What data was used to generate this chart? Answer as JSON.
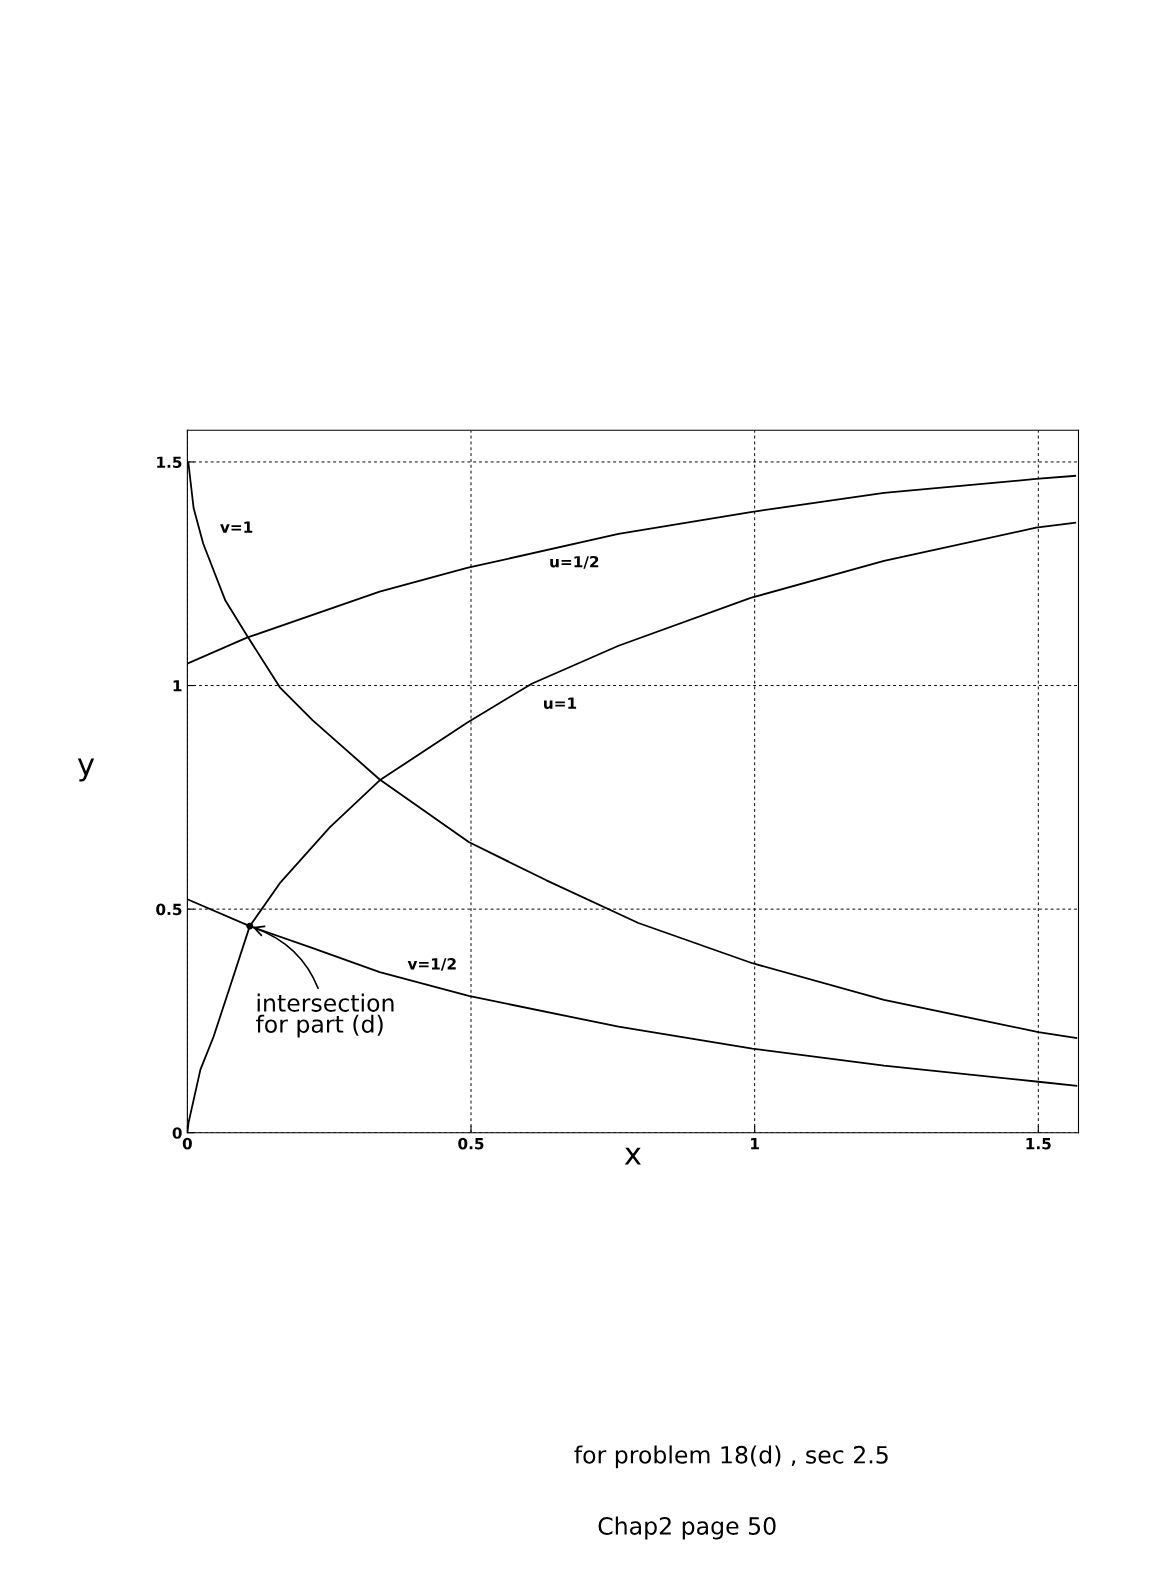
{
  "chart_data": {
    "type": "line",
    "xlabel": "x",
    "ylabel": "y",
    "xlim": [
      0,
      1.5708
    ],
    "ylim": [
      0,
      1.5708
    ],
    "xticks": [
      0,
      0.5,
      1,
      1.5
    ],
    "yticks": [
      0,
      0.5,
      1,
      1.5
    ],
    "grid": true,
    "legend": false,
    "marker": "none",
    "line_style": "solid",
    "series": [
      {
        "name": "v=1",
        "color": "#000000",
        "x": [
          0,
          0.002,
          0.011,
          0.028,
          0.067,
          0.105,
          0.163,
          0.221,
          0.339,
          0.496,
          0.632,
          0.795,
          0.996,
          1.228,
          1.5,
          1.567
        ],
        "values": [
          1.5,
          1.496,
          1.397,
          1.317,
          1.19,
          1.112,
          0.996,
          0.922,
          0.79,
          0.65,
          0.565,
          0.469,
          0.379,
          0.297,
          0.225,
          0.212
        ]
      },
      {
        "name": "u=1/2",
        "color": "#000000",
        "x": [
          0,
          0.105,
          0.339,
          0.493,
          0.76,
          0.993,
          1.228,
          1.496,
          1.565
        ],
        "values": [
          1.049,
          1.107,
          1.21,
          1.263,
          1.339,
          1.388,
          1.431,
          1.462,
          1.469
        ]
      },
      {
        "name": "u=1",
        "color": "#000000",
        "x": [
          0,
          0.002,
          0.023,
          0.046,
          0.075,
          0.11,
          0.163,
          0.251,
          0.339,
          0.493,
          0.607,
          0.76,
          0.993,
          1.228,
          1.496,
          1.565
        ],
        "values": [
          0,
          0.022,
          0.141,
          0.214,
          0.326,
          0.462,
          0.558,
          0.683,
          0.788,
          0.917,
          1.004,
          1.089,
          1.196,
          1.279,
          1.353,
          1.364
        ]
      },
      {
        "name": "v=1/2",
        "color": "#000000",
        "x": [
          0,
          0.11,
          0.221,
          0.339,
          0.496,
          0.76,
          0.996,
          1.228,
          1.5,
          1.567
        ],
        "values": [
          0.522,
          0.462,
          0.413,
          0.359,
          0.306,
          0.237,
          0.188,
          0.15,
          0.114,
          0.105
        ]
      }
    ],
    "annotations": [
      {
        "text": "intersection\nfor part (d)",
        "x": 0.11,
        "y": 0.462
      },
      "for problem 18(d) , sec 2.5",
      "Chap2 page 50"
    ]
  }
}
